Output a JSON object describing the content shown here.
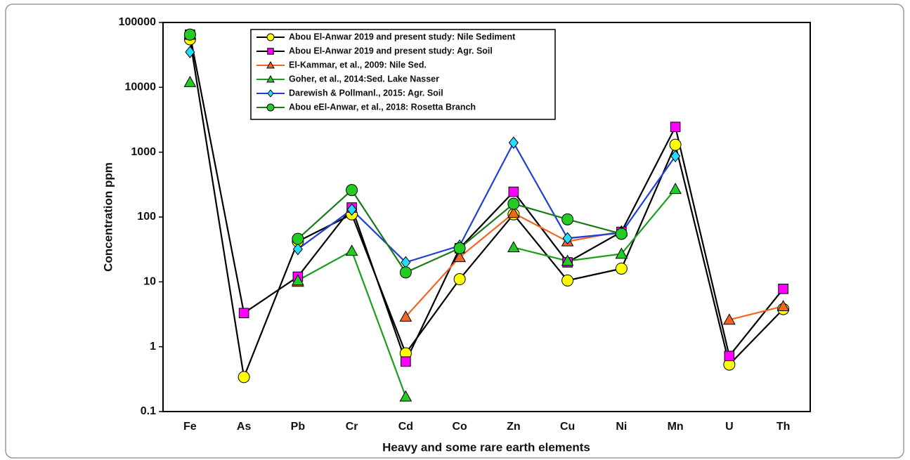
{
  "chart_data": {
    "type": "line",
    "x_label": "Heavy and some rare earth elements",
    "y_label": "Concentration ppm",
    "categories": [
      "Fe",
      "As",
      "Pb",
      "Cr",
      "Cd",
      "Co",
      "Zn",
      "Cu",
      "Ni",
      "Mn",
      "U",
      "Th"
    ],
    "log_y": true,
    "grid": false,
    "legend": "top",
    "ylim": [
      0.1,
      100000
    ],
    "yticks": [
      0.1,
      1,
      10,
      100,
      1000,
      10000,
      100000
    ],
    "series": [
      {
        "name": "Abou El-Anwar 2019 and present study: Nile Sediment",
        "color": "#000000",
        "marker": "circle",
        "marker_color": "#ffff00",
        "values": [
          55000,
          0.34,
          42,
          110,
          0.79,
          11,
          110,
          10.5,
          16,
          1300,
          0.53,
          3.8
        ]
      },
      {
        "name": "Abou El-Anwar 2019 and present study: Agr. Soil",
        "color": "#000000",
        "marker": "square",
        "marker_color": "#ff00ff",
        "values": [
          65000,
          3.3,
          12,
          140,
          0.59,
          33,
          245,
          20,
          59,
          2450,
          0.72,
          7.8
        ]
      },
      {
        "name": "El-Kammar, et al., 2009: Nile Sed.",
        "color": "#f26522",
        "marker": "triangle",
        "marker_color": "#f26522",
        "values": [
          null,
          null,
          10,
          null,
          2.9,
          24,
          115,
          42,
          60,
          null,
          2.6,
          4.2
        ]
      },
      {
        "name": "Goher, et al., 2014:Sed. Lake Nasser",
        "color": "#1a9e1a",
        "marker": "triangle",
        "marker_color": "#22cc22",
        "values": [
          12000,
          null,
          10.5,
          30,
          0.17,
          null,
          34,
          21,
          27,
          270,
          null,
          null
        ]
      },
      {
        "name": "Darewish & Pollmanl., 2015: Agr. Soil",
        "color": "#1f3fd6",
        "marker": "diamond",
        "marker_color": "#22ddff",
        "values": [
          35000,
          null,
          32,
          130,
          20,
          36,
          1400,
          47,
          57,
          870,
          null,
          null
        ]
      },
      {
        "name": "Abou eEl-Anwar, et al., 2018: Rosetta Branch",
        "color": "#1a7a1a",
        "marker": "circle",
        "marker_color": "#22cc22",
        "values": [
          65000,
          null,
          46,
          260,
          14,
          33,
          160,
          92,
          55,
          null,
          null,
          null
        ]
      }
    ]
  }
}
